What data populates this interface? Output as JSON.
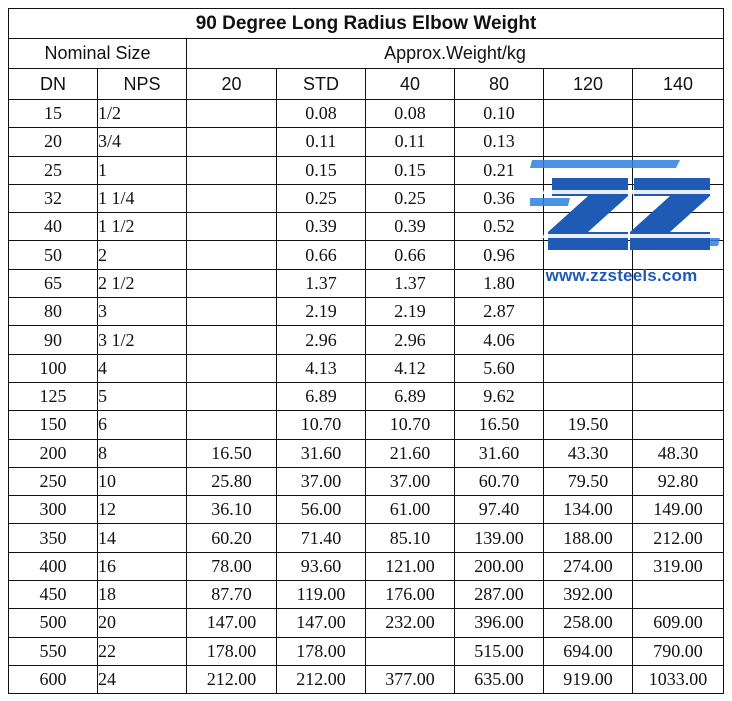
{
  "title": "90 Degree Long Radius Elbow Weight",
  "header": {
    "nominal_size": "Nominal Size",
    "approx_weight": "Approx.Weight/kg",
    "dn": "DN",
    "nps": "NPS",
    "schedules": [
      "20",
      "STD",
      "40",
      "80",
      "120",
      "140"
    ]
  },
  "rows": [
    {
      "dn": "15",
      "nps": "1/2",
      "w": [
        "",
        "0.08",
        "0.08",
        "0.10",
        "",
        ""
      ]
    },
    {
      "dn": "20",
      "nps": "3/4",
      "w": [
        "",
        "0.11",
        "0.11",
        "0.13",
        "",
        ""
      ]
    },
    {
      "dn": "25",
      "nps": "1",
      "w": [
        "",
        "0.15",
        "0.15",
        "0.21",
        "",
        ""
      ]
    },
    {
      "dn": "32",
      "nps": "1 1/4",
      "w": [
        "",
        "0.25",
        "0.25",
        "0.36",
        "",
        ""
      ]
    },
    {
      "dn": "40",
      "nps": "1 1/2",
      "w": [
        "",
        "0.39",
        "0.39",
        "0.52",
        "",
        ""
      ]
    },
    {
      "dn": "50",
      "nps": "2",
      "w": [
        "",
        "0.66",
        "0.66",
        "0.96",
        "",
        ""
      ]
    },
    {
      "dn": "65",
      "nps": "2 1/2",
      "w": [
        "",
        "1.37",
        "1.37",
        "1.80",
        "",
        ""
      ]
    },
    {
      "dn": "80",
      "nps": "3",
      "w": [
        "",
        "2.19",
        "2.19",
        "2.87",
        "",
        ""
      ]
    },
    {
      "dn": "90",
      "nps": "3 1/2",
      "w": [
        "",
        "2.96",
        "2.96",
        "4.06",
        "",
        ""
      ]
    },
    {
      "dn": "100",
      "nps": "4",
      "w": [
        "",
        "4.13",
        "4.12",
        "5.60",
        "",
        ""
      ]
    },
    {
      "dn": "125",
      "nps": "5",
      "w": [
        "",
        "6.89",
        "6.89",
        "9.62",
        "",
        ""
      ]
    },
    {
      "dn": "150",
      "nps": "6",
      "w": [
        "",
        "10.70",
        "10.70",
        "16.50",
        "19.50",
        ""
      ]
    },
    {
      "dn": "200",
      "nps": "8",
      "w": [
        "16.50",
        "31.60",
        "21.60",
        "31.60",
        "43.30",
        "48.30"
      ]
    },
    {
      "dn": "250",
      "nps": "10",
      "w": [
        "25.80",
        "37.00",
        "37.00",
        "60.70",
        "79.50",
        "92.80"
      ]
    },
    {
      "dn": "300",
      "nps": "12",
      "w": [
        "36.10",
        "56.00",
        "61.00",
        "97.40",
        "134.00",
        "149.00"
      ]
    },
    {
      "dn": "350",
      "nps": "14",
      "w": [
        "60.20",
        "71.40",
        "85.10",
        "139.00",
        "188.00",
        "212.00"
      ]
    },
    {
      "dn": "400",
      "nps": "16",
      "w": [
        "78.00",
        "93.60",
        "121.00",
        "200.00",
        "274.00",
        "319.00"
      ]
    },
    {
      "dn": "450",
      "nps": "18",
      "w": [
        "87.70",
        "119.00",
        "176.00",
        "287.00",
        "392.00",
        ""
      ]
    },
    {
      "dn": "500",
      "nps": "20",
      "w": [
        "147.00",
        "147.00",
        "232.00",
        "396.00",
        "258.00",
        "609.00"
      ]
    },
    {
      "dn": "550",
      "nps": "22",
      "w": [
        "178.00",
        "178.00",
        "",
        "515.00",
        "694.00",
        "790.00"
      ]
    },
    {
      "dn": "600",
      "nps": "24",
      "w": [
        "212.00",
        "212.00",
        "377.00",
        "635.00",
        "919.00",
        "1033.00"
      ]
    }
  ],
  "watermark": {
    "url": "www.zzsteels.com",
    "logo_icon": "zz-logo-icon",
    "color": "#1f5bb5",
    "accent": "#2f7fe0"
  }
}
